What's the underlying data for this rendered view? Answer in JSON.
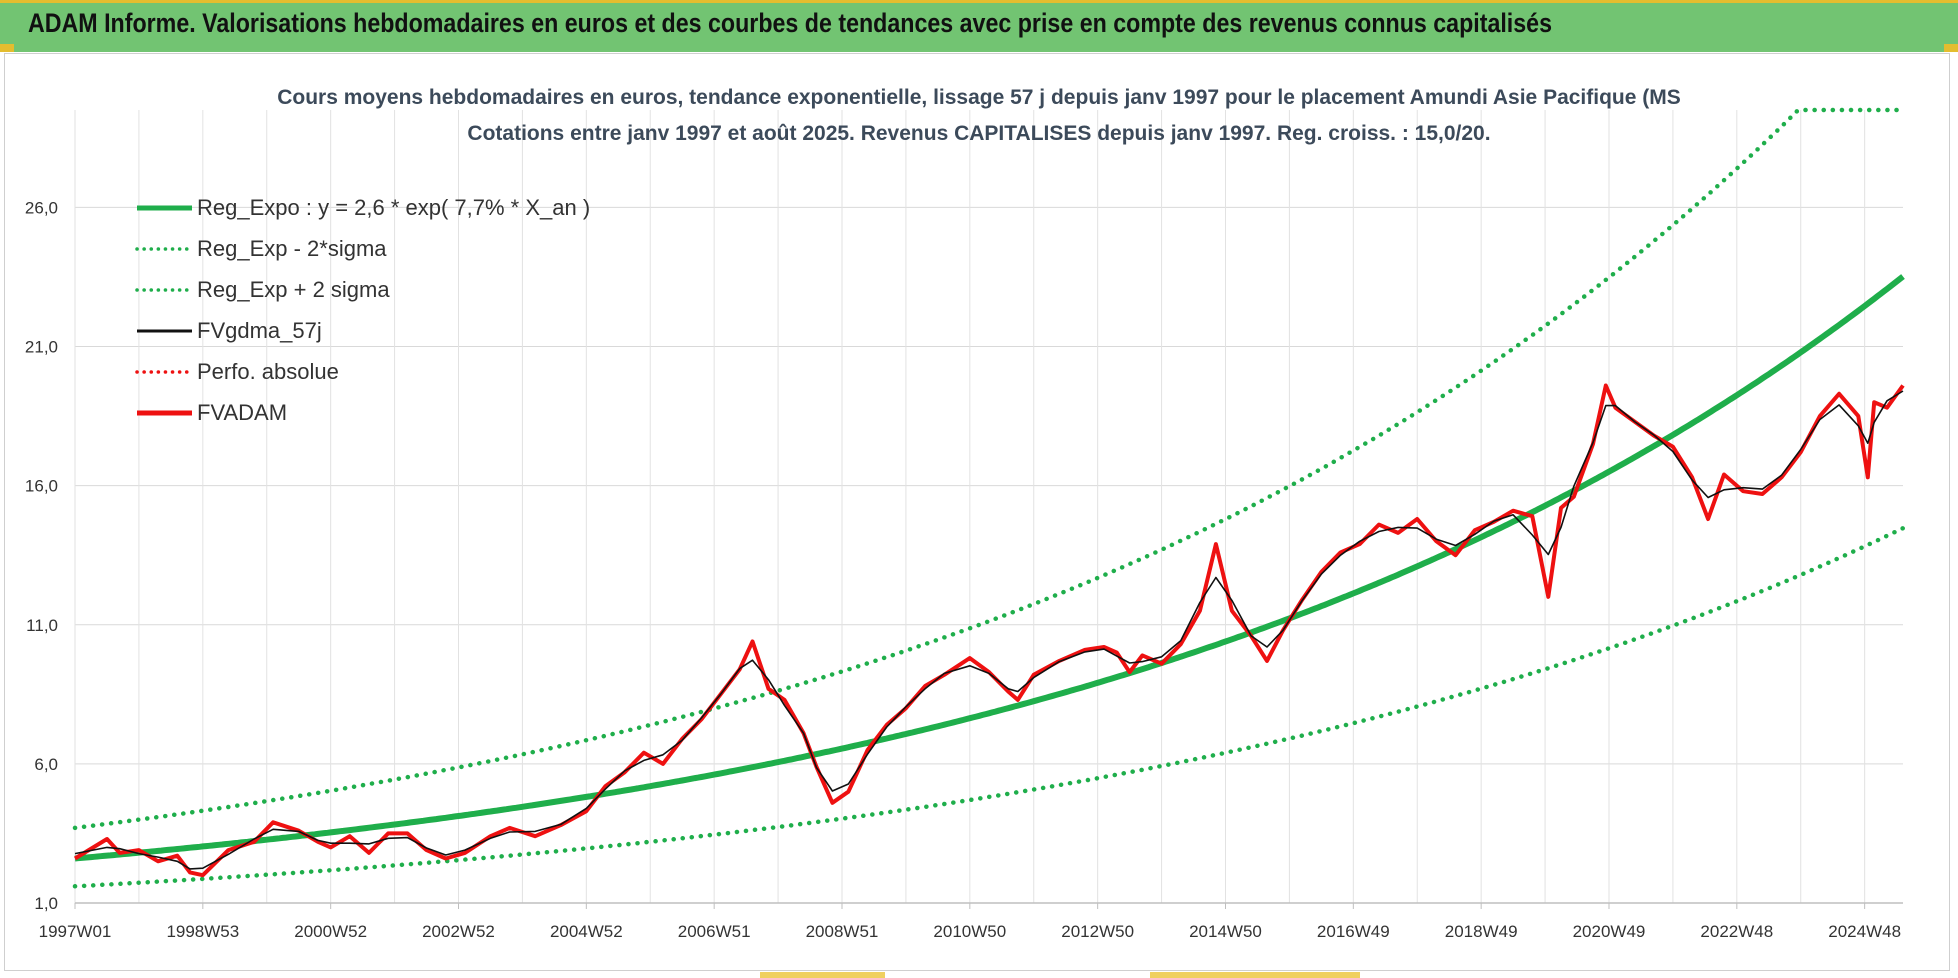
{
  "header": {
    "title": "ADAM Informe. Valorisations hebdomadaires en euros et des courbes de tendances avec prise en compte des revenus connus capitalisés"
  },
  "colors": {
    "banner": "#72c472",
    "accent": "#e4bd2f",
    "trend_green": "#1fae4b",
    "price_red": "#ee1111",
    "smooth_black": "#111111"
  },
  "chart_data": {
    "type": "line",
    "title_lines": [
      "Cours moyens hebdomadaires en euros, tendance exponentielle, lissage 57 j depuis janv 1997 pour le placement Amundi Asie Pacifique (MS",
      "Cotations entre janv 1997 et août 2025. Revenus CAPITALISES depuis janv 1997. Reg. croiss. : 15,0/20."
    ],
    "x_range": [
      1997.0,
      2025.6
    ],
    "ylim": [
      1.0,
      29.5
    ],
    "y_ticks": [
      "1,0",
      "6,0",
      "11,0",
      "16,0",
      "21,0",
      "26,0"
    ],
    "y_tick_values": [
      1,
      6,
      11,
      16,
      21,
      26
    ],
    "x_tick_labels": [
      "1997W01",
      "1998W53",
      "2000W52",
      "2002W52",
      "2004W52",
      "2006W51",
      "2008W51",
      "2010W50",
      "2012W50",
      "2014W50",
      "2016W49",
      "2018W49",
      "2020W49",
      "2022W48",
      "2024W48"
    ],
    "x_tick_values": [
      1997.0,
      1999.0,
      2001.0,
      2003.0,
      2005.0,
      2007.0,
      2009.0,
      2011.0,
      2013.0,
      2015.0,
      2017.0,
      2019.0,
      2021.0,
      2023.0,
      2025.0
    ],
    "grid": true,
    "legend_position": "top-left",
    "legend": [
      {
        "label": "Reg_Expo : y = 2,6 * exp( 7,7% *  X_an )",
        "color": "#1fae4b",
        "style": "solid-thick"
      },
      {
        "label": "Reg_Exp - 2*sigma",
        "color": "#1fae4b",
        "style": "dotted"
      },
      {
        "label": "Reg_Exp + 2 sigma",
        "color": "#1fae4b",
        "style": "dotted"
      },
      {
        "label": "FVgdma_57j",
        "color": "#111111",
        "style": "solid"
      },
      {
        "label": "Perfo. absolue",
        "color": "#ee1111",
        "style": "dotted"
      },
      {
        "label": "FVADAM",
        "color": "#ee1111",
        "style": "solid-thick"
      }
    ],
    "trend": {
      "a": 2.6,
      "rate": 0.077
    },
    "band_lower": {
      "a": 1.6,
      "rate": 0.077
    },
    "band_upper": {
      "a": 3.7,
      "rate": 0.077,
      "clip": 29.5
    },
    "series_fvadam": {
      "x": [
        1997.0,
        1997.5,
        1997.7,
        1998.0,
        1998.3,
        1998.6,
        1998.8,
        1999.0,
        1999.4,
        1999.8,
        2000.1,
        2000.5,
        2000.8,
        2001.0,
        2001.3,
        2001.6,
        2001.9,
        2002.2,
        2002.5,
        2002.8,
        2003.1,
        2003.5,
        2003.8,
        2004.2,
        2004.6,
        2005.0,
        2005.3,
        2005.6,
        2005.9,
        2006.2,
        2006.5,
        2006.8,
        2007.1,
        2007.4,
        2007.6,
        2007.85,
        2008.1,
        2008.4,
        2008.6,
        2008.85,
        2009.1,
        2009.4,
        2009.7,
        2010.0,
        2010.3,
        2010.6,
        2011.0,
        2011.3,
        2011.6,
        2011.75,
        2012.0,
        2012.4,
        2012.8,
        2013.1,
        2013.3,
        2013.5,
        2013.7,
        2014.0,
        2014.3,
        2014.6,
        2014.85,
        2015.1,
        2015.4,
        2015.65,
        2015.9,
        2016.2,
        2016.5,
        2016.8,
        2017.1,
        2017.4,
        2017.7,
        2018.0,
        2018.3,
        2018.6,
        2018.9,
        2019.2,
        2019.5,
        2019.8,
        2020.05,
        2020.25,
        2020.45,
        2020.75,
        2020.95,
        2021.1,
        2021.4,
        2021.7,
        2022.0,
        2022.3,
        2022.55,
        2022.8,
        2023.1,
        2023.4,
        2023.7,
        2024.0,
        2024.3,
        2024.6,
        2024.9,
        2025.05,
        2025.15,
        2025.35,
        2025.6
      ],
      "y": [
        2.6,
        3.3,
        2.8,
        2.9,
        2.5,
        2.7,
        2.1,
        2.0,
        2.9,
        3.2,
        3.9,
        3.6,
        3.2,
        3.0,
        3.4,
        2.8,
        3.5,
        3.5,
        2.9,
        2.6,
        2.8,
        3.4,
        3.7,
        3.4,
        3.8,
        4.3,
        5.2,
        5.7,
        6.4,
        6.0,
        6.9,
        7.6,
        8.5,
        9.4,
        10.4,
        8.7,
        8.3,
        7.1,
        5.9,
        4.6,
        5.0,
        6.5,
        7.4,
        8.0,
        8.8,
        9.2,
        9.8,
        9.3,
        8.6,
        8.3,
        9.2,
        9.7,
        10.1,
        10.2,
        10.0,
        9.3,
        9.9,
        9.6,
        10.3,
        11.5,
        13.9,
        11.5,
        10.6,
        9.7,
        10.8,
        11.9,
        12.9,
        13.6,
        13.9,
        14.6,
        14.3,
        14.8,
        14.0,
        13.5,
        14.4,
        14.7,
        15.1,
        14.9,
        12.0,
        15.2,
        15.6,
        17.5,
        19.6,
        18.8,
        18.3,
        17.8,
        17.4,
        16.3,
        14.8,
        16.4,
        15.8,
        15.7,
        16.3,
        17.2,
        18.5,
        19.3,
        18.5,
        16.3,
        19.0,
        18.8,
        19.6
      ]
    }
  }
}
